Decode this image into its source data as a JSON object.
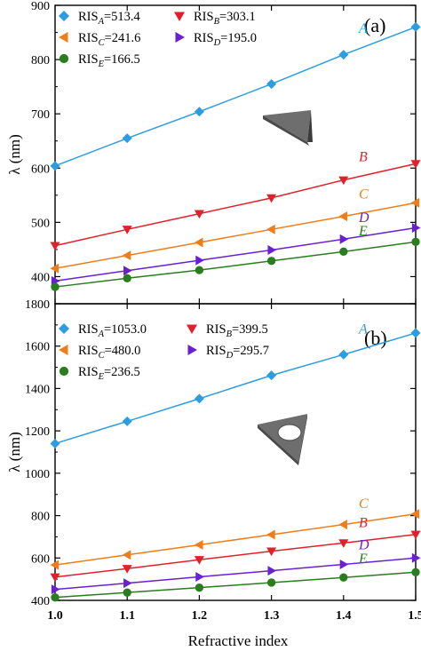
{
  "x_axis": {
    "label": "Refractive index",
    "range": [
      1.0,
      1.5
    ],
    "ticks": [
      "1.0",
      "1.1",
      "1.2",
      "1.3",
      "1.4",
      "1.5"
    ]
  },
  "chart_data": [
    {
      "type": "line",
      "panel_label": "(a)",
      "ylabel": "λ (nm)",
      "xlim": [
        1.0,
        1.5
      ],
      "ylim": [
        350,
        900
      ],
      "yticks": [
        "400",
        "500",
        "600",
        "700",
        "800",
        "900"
      ],
      "x": [
        1.0,
        1.1,
        1.2,
        1.3,
        1.4,
        1.5
      ],
      "grid": false,
      "legend_placement": "top-left",
      "inset_shape": "solid-triangle",
      "series": [
        {
          "id": "A",
          "label": "A",
          "legend": {
            "prefix": "RIS",
            "sub": "A",
            "value": "=513.4"
          },
          "marker": "diamond",
          "color": "#2c9de0",
          "values": [
            604,
            655,
            704,
            755,
            809,
            860
          ]
        },
        {
          "id": "B",
          "label": "B",
          "legend": {
            "prefix": "RIS",
            "sub": "B",
            "value": "=303.1"
          },
          "marker": "triangle-down",
          "color": "#e0202a",
          "values": [
            457,
            487,
            516,
            545,
            578,
            608
          ]
        },
        {
          "id": "C",
          "label": "C",
          "legend": {
            "prefix": "RIS",
            "sub": "C",
            "value": "=241.6"
          },
          "marker": "triangle-left",
          "color": "#ef7d1a",
          "values": [
            415,
            439,
            463,
            487,
            511,
            536
          ]
        },
        {
          "id": "D",
          "label": "D",
          "legend": {
            "prefix": "RIS",
            "sub": "D",
            "value": "=195.0"
          },
          "marker": "triangle-right",
          "color": "#6a1fd0",
          "values": [
            392,
            411,
            430,
            449,
            469,
            490
          ]
        },
        {
          "id": "E",
          "label": "E",
          "legend": {
            "prefix": "RIS",
            "sub": "E",
            "value": "=166.5"
          },
          "marker": "circle",
          "color": "#2a7d1e",
          "values": [
            381,
            397,
            412,
            429,
            446,
            464
          ]
        }
      ]
    },
    {
      "type": "line",
      "panel_label": "(b)",
      "ylabel": "λ (nm)",
      "xlim": [
        1.0,
        1.5
      ],
      "ylim": [
        400,
        1800
      ],
      "yticks": [
        "400",
        "600",
        "800",
        "1000",
        "1200",
        "1400",
        "1600",
        "1800"
      ],
      "x": [
        1.0,
        1.1,
        1.2,
        1.3,
        1.4,
        1.5
      ],
      "grid": false,
      "legend_placement": "top-left",
      "inset_shape": "triangle-with-hole",
      "series": [
        {
          "id": "A",
          "label": "A",
          "legend": {
            "prefix": "RIS",
            "sub": "A",
            "value": "=1053.0"
          },
          "marker": "diamond",
          "color": "#2c9de0",
          "values": [
            1140,
            1245,
            1352,
            1462,
            1560,
            1662
          ]
        },
        {
          "id": "C",
          "label": "C",
          "legend": {
            "prefix": "RIS",
            "sub": "C",
            "value": "=480.0"
          },
          "marker": "triangle-left",
          "color": "#ef7d1a",
          "values": [
            567,
            615,
            662,
            710,
            758,
            808
          ]
        },
        {
          "id": "B",
          "label": "B",
          "legend": {
            "prefix": "RIS",
            "sub": "B",
            "value": "=399.5"
          },
          "marker": "triangle-down",
          "color": "#e0202a",
          "values": [
            510,
            550,
            592,
            632,
            671,
            711
          ]
        },
        {
          "id": "D",
          "label": "D",
          "legend": {
            "prefix": "RIS",
            "sub": "D",
            "value": "=295.7"
          },
          "marker": "triangle-right",
          "color": "#6a1fd0",
          "values": [
            452,
            481,
            511,
            540,
            570,
            600
          ]
        },
        {
          "id": "E",
          "label": "E",
          "legend": {
            "prefix": "RIS",
            "sub": "E",
            "value": "=236.5"
          },
          "marker": "circle",
          "color": "#2a7d1e",
          "values": [
            414,
            437,
            460,
            484,
            508,
            533
          ]
        }
      ]
    }
  ]
}
